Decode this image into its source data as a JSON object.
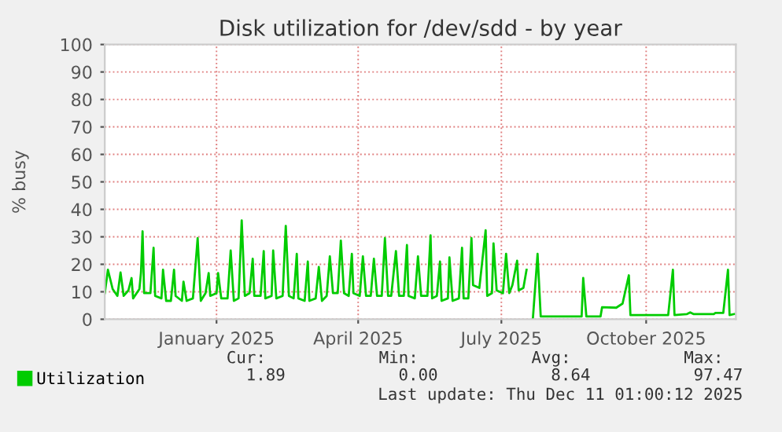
{
  "chart_data": {
    "type": "line",
    "title": "Disk utilization for /dev/sdd - by year",
    "ylabel": "% busy",
    "x": [
      "2024-11-05",
      "2024-11-07",
      "2024-11-10",
      "2024-11-13",
      "2024-11-15",
      "2024-11-17",
      "2024-11-20",
      "2024-11-22",
      "2024-11-23",
      "2024-11-27",
      "2024-11-28",
      "2024-11-29",
      "2024-11-30",
      "2024-12-04",
      "2024-12-06",
      "2024-12-07",
      "2024-12-11",
      "2024-12-12",
      "2024-12-14",
      "2024-12-17",
      "2024-12-19",
      "2024-12-20",
      "2024-12-24",
      "2024-12-25",
      "2024-12-27",
      "2024-12-31",
      "2025-01-03",
      "2025-01-05",
      "2025-01-08",
      "2025-01-10",
      "2025-01-11",
      "2025-01-15",
      "2025-01-16",
      "2025-01-18",
      "2025-01-22",
      "2025-01-24",
      "2025-01-26",
      "2025-01-29",
      "2025-01-31",
      "2025-02-02",
      "2025-02-05",
      "2025-02-07",
      "2025-02-08",
      "2025-02-12",
      "2025-02-14",
      "2025-02-15",
      "2025-02-19",
      "2025-02-20",
      "2025-02-22",
      "2025-02-26",
      "2025-02-28",
      "2025-03-02",
      "2025-03-05",
      "2025-03-07",
      "2025-03-08",
      "2025-03-12",
      "2025-03-14",
      "2025-03-15",
      "2025-03-19",
      "2025-03-21",
      "2025-03-23",
      "2025-03-26",
      "2025-03-28",
      "2025-03-30",
      "2025-04-02",
      "2025-04-04",
      "2025-04-06",
      "2025-04-09",
      "2025-04-11",
      "2025-04-12",
      "2025-04-16",
      "2025-04-18",
      "2025-04-20",
      "2025-04-23",
      "2025-04-25",
      "2025-04-27",
      "2025-04-30",
      "2025-05-02",
      "2025-05-04",
      "2025-05-06",
      "2025-05-09",
      "2025-05-11",
      "2025-05-14",
      "2025-05-16",
      "2025-05-17",
      "2025-05-21",
      "2025-05-23",
      "2025-05-25",
      "2025-05-29",
      "2025-05-31",
      "2025-06-01",
      "2025-06-04",
      "2025-06-06",
      "2025-06-07",
      "2025-06-11",
      "2025-06-12",
      "2025-06-14",
      "2025-06-18",
      "2025-06-20",
      "2025-06-21",
      "2025-06-24",
      "2025-06-26",
      "2025-06-27",
      "2025-07-01",
      "2025-07-05",
      "2025-07-06",
      "2025-07-09",
      "2025-07-10",
      "2025-07-12",
      "2025-07-16",
      "2025-07-18",
      "2025-07-20",
      "2025-07-22",
      "2025-07-25",
      "2025-07-26",
      "2025-07-29",
      "2025-07-31",
      "2025-08-02",
      "2025-08-04",
      "2025-08-07",
      "2025-08-09",
      "2025-09-04",
      "2025-09-05",
      "2025-09-07",
      "2025-09-16",
      "2025-09-17",
      "2025-09-26",
      "2025-09-30",
      "2025-10-04",
      "2025-10-05",
      "2025-10-29",
      "2025-11-01",
      "2025-11-02",
      "2025-11-10",
      "2025-11-12",
      "2025-11-14",
      "2025-11-27",
      "2025-11-28",
      "2025-12-03",
      "2025-12-06",
      "2025-12-07",
      "2025-12-10"
    ],
    "series": [
      {
        "name": "Utilization",
        "color": "#00cc00",
        "values": [
          9.5,
          18,
          11,
          8.5,
          17,
          8.5,
          10.5,
          15,
          7.6,
          11,
          17,
          32,
          9.5,
          9.5,
          26,
          8.5,
          7.6,
          18,
          6.7,
          6.7,
          18,
          8.5,
          6.7,
          13.7,
          6.7,
          7.6,
          29.5,
          6.7,
          9.5,
          16.8,
          8.5,
          9.5,
          16.8,
          7.6,
          7.6,
          25,
          6.7,
          7.6,
          36,
          8.5,
          9.5,
          22,
          8.5,
          8.5,
          24.8,
          7.6,
          8.5,
          25,
          7.6,
          8.5,
          34,
          8.5,
          7.6,
          23.8,
          7.6,
          6.7,
          21,
          6.7,
          7.6,
          19,
          6.7,
          8.5,
          22.9,
          9.5,
          9.5,
          28.6,
          9.5,
          8.5,
          23.8,
          9.5,
          8.5,
          22.9,
          8.5,
          8.5,
          22,
          8.5,
          8.5,
          29.5,
          8.5,
          8.5,
          24.8,
          8.5,
          8.5,
          27,
          8.5,
          7.6,
          22.9,
          8.5,
          8.5,
          30.5,
          7.6,
          8.5,
          21,
          6.7,
          7.6,
          22.5,
          6.7,
          7.6,
          26,
          7.6,
          7.6,
          29.5,
          12.4,
          11.4,
          32.4,
          8.5,
          9.5,
          27.6,
          10.5,
          9.5,
          23.8,
          9.5,
          12.4,
          21.3,
          10.5,
          11.4,
          18,
          null,
          0,
          23.8,
          1,
          1,
          15,
          1,
          1,
          4.4,
          4.2,
          5.7,
          16,
          1.5,
          1.5,
          18,
          1.5,
          1.9,
          2.5,
          1.9,
          1.9,
          2.3,
          2.3,
          18,
          1.5,
          1.9
        ]
      }
    ],
    "xlim": [
      "2024-11-05",
      "2025-12-11"
    ],
    "xticks": [
      {
        "value": "2025-01-15",
        "label": "January 2025"
      },
      {
        "value": "2025-04-15",
        "label": "April 2025"
      },
      {
        "value": "2025-07-15",
        "label": "July 2025"
      },
      {
        "value": "2025-10-15",
        "label": "October 2025"
      }
    ],
    "ylim": [
      0,
      100
    ],
    "yticks": [
      0,
      10,
      20,
      30,
      40,
      50,
      60,
      70,
      80,
      90,
      100
    ],
    "grid": true,
    "legend": "bottom left",
    "annotations": [
      "Cur:",
      "Min:",
      "Avg:",
      "Max:",
      "1.89",
      "0.00",
      "8.64",
      "97.47",
      "Last update: Thu Dec 11 01:00:12 2025"
    ]
  }
}
